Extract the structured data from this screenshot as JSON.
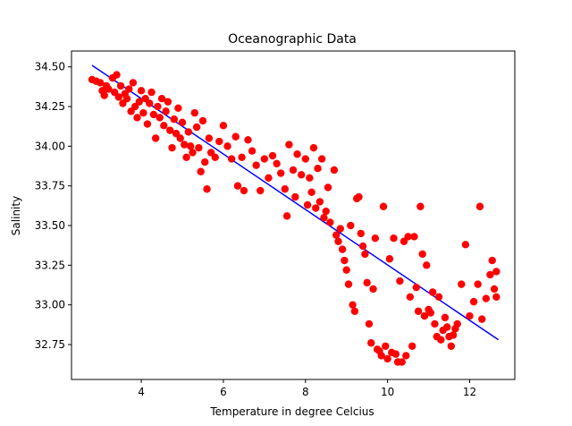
{
  "chart_data": {
    "type": "scatter",
    "title": "Oceanographic Data",
    "xlabel": "Temperature in degree Celcius",
    "ylabel": "Salinity",
    "xlim": [
      2.3,
      13.1
    ],
    "ylim": [
      32.53,
      34.6
    ],
    "xticks": [
      4,
      6,
      8,
      10,
      12
    ],
    "yticks": [
      32.75,
      33.0,
      33.25,
      33.5,
      33.75,
      34.0,
      34.25,
      34.5
    ],
    "grid": false,
    "scatter_color": "#ff0000",
    "line_color": "#0000ff",
    "fit_line": {
      "x": [
        2.8,
        12.7
      ],
      "y": [
        34.51,
        32.78
      ]
    },
    "points": [
      [
        2.8,
        34.42
      ],
      [
        2.9,
        34.41
      ],
      [
        3.0,
        34.4
      ],
      [
        3.05,
        34.35
      ],
      [
        3.1,
        34.32
      ],
      [
        3.15,
        34.38
      ],
      [
        3.2,
        34.36
      ],
      [
        3.3,
        34.43
      ],
      [
        3.35,
        34.34
      ],
      [
        3.4,
        34.45
      ],
      [
        3.45,
        34.31
      ],
      [
        3.5,
        34.38
      ],
      [
        3.55,
        34.27
      ],
      [
        3.6,
        34.33
      ],
      [
        3.65,
        34.3
      ],
      [
        3.7,
        34.36
      ],
      [
        3.75,
        34.22
      ],
      [
        3.8,
        34.4
      ],
      [
        3.85,
        34.25
      ],
      [
        3.9,
        34.18
      ],
      [
        3.95,
        34.28
      ],
      [
        4.0,
        34.35
      ],
      [
        4.05,
        34.21
      ],
      [
        4.1,
        34.3
      ],
      [
        4.15,
        34.14
      ],
      [
        4.2,
        34.27
      ],
      [
        4.25,
        34.34
      ],
      [
        4.3,
        34.2
      ],
      [
        4.35,
        34.05
      ],
      [
        4.4,
        34.25
      ],
      [
        4.45,
        34.18
      ],
      [
        4.5,
        34.3
      ],
      [
        4.55,
        34.13
      ],
      [
        4.6,
        34.22
      ],
      [
        4.65,
        34.28
      ],
      [
        4.7,
        34.1
      ],
      [
        4.75,
        33.99
      ],
      [
        4.8,
        34.17
      ],
      [
        4.85,
        34.08
      ],
      [
        4.9,
        34.24
      ],
      [
        4.95,
        34.05
      ],
      [
        5.0,
        34.15
      ],
      [
        5.05,
        34.01
      ],
      [
        5.1,
        33.93
      ],
      [
        5.15,
        34.09
      ],
      [
        5.2,
        34.0
      ],
      [
        5.25,
        33.96
      ],
      [
        5.3,
        34.21
      ],
      [
        5.35,
        34.12
      ],
      [
        5.4,
        33.99
      ],
      [
        5.45,
        33.84
      ],
      [
        5.5,
        34.16
      ],
      [
        5.55,
        33.9
      ],
      [
        5.6,
        33.73
      ],
      [
        5.65,
        34.05
      ],
      [
        5.7,
        33.96
      ],
      [
        5.8,
        33.93
      ],
      [
        5.9,
        34.03
      ],
      [
        6.0,
        34.13
      ],
      [
        6.1,
        34.0
      ],
      [
        6.2,
        33.92
      ],
      [
        6.3,
        34.06
      ],
      [
        6.35,
        33.75
      ],
      [
        6.45,
        33.93
      ],
      [
        6.5,
        33.72
      ],
      [
        6.6,
        34.04
      ],
      [
        6.7,
        33.97
      ],
      [
        6.8,
        33.88
      ],
      [
        6.9,
        33.72
      ],
      [
        7.0,
        33.92
      ],
      [
        7.1,
        33.8
      ],
      [
        7.2,
        33.94
      ],
      [
        7.3,
        33.89
      ],
      [
        7.4,
        33.83
      ],
      [
        7.5,
        33.73
      ],
      [
        7.55,
        33.56
      ],
      [
        7.6,
        34.01
      ],
      [
        7.7,
        33.85
      ],
      [
        7.75,
        33.68
      ],
      [
        7.8,
        33.95
      ],
      [
        7.9,
        33.82
      ],
      [
        8.0,
        33.92
      ],
      [
        8.05,
        33.63
      ],
      [
        8.1,
        33.8
      ],
      [
        8.15,
        33.71
      ],
      [
        8.2,
        33.99
      ],
      [
        8.25,
        33.61
      ],
      [
        8.3,
        33.86
      ],
      [
        8.35,
        33.65
      ],
      [
        8.4,
        33.92
      ],
      [
        8.45,
        33.55
      ],
      [
        8.5,
        33.59
      ],
      [
        8.55,
        33.74
      ],
      [
        8.6,
        33.52
      ],
      [
        8.7,
        33.85
      ],
      [
        8.75,
        33.44
      ],
      [
        8.8,
        33.4
      ],
      [
        8.85,
        33.48
      ],
      [
        8.9,
        33.35
      ],
      [
        8.95,
        33.28
      ],
      [
        9.0,
        33.22
      ],
      [
        9.05,
        33.13
      ],
      [
        9.1,
        33.5
      ],
      [
        9.15,
        33.0
      ],
      [
        9.2,
        32.96
      ],
      [
        9.25,
        33.67
      ],
      [
        9.3,
        33.68
      ],
      [
        9.35,
        33.45
      ],
      [
        9.4,
        33.37
      ],
      [
        9.45,
        33.32
      ],
      [
        9.5,
        33.14
      ],
      [
        9.55,
        32.88
      ],
      [
        9.6,
        32.76
      ],
      [
        9.65,
        33.1
      ],
      [
        9.7,
        33.42
      ],
      [
        9.75,
        32.72
      ],
      [
        9.8,
        32.71
      ],
      [
        9.85,
        32.68
      ],
      [
        9.9,
        33.62
      ],
      [
        9.95,
        32.74
      ],
      [
        10.0,
        32.66
      ],
      [
        10.05,
        33.29
      ],
      [
        10.1,
        32.7
      ],
      [
        10.15,
        33.42
      ],
      [
        10.2,
        32.69
      ],
      [
        10.25,
        32.64
      ],
      [
        10.3,
        33.15
      ],
      [
        10.35,
        32.64
      ],
      [
        10.4,
        33.4
      ],
      [
        10.45,
        32.68
      ],
      [
        10.5,
        33.43
      ],
      [
        10.55,
        33.05
      ],
      [
        10.6,
        32.74
      ],
      [
        10.65,
        33.43
      ],
      [
        10.7,
        33.11
      ],
      [
        10.75,
        32.96
      ],
      [
        10.8,
        33.62
      ],
      [
        10.85,
        33.32
      ],
      [
        10.9,
        32.93
      ],
      [
        10.95,
        33.25
      ],
      [
        11.0,
        32.97
      ],
      [
        11.05,
        32.95
      ],
      [
        11.1,
        33.08
      ],
      [
        11.15,
        32.88
      ],
      [
        11.2,
        32.8
      ],
      [
        11.25,
        33.05
      ],
      [
        11.3,
        32.78
      ],
      [
        11.35,
        32.84
      ],
      [
        11.4,
        32.92
      ],
      [
        11.45,
        32.86
      ],
      [
        11.5,
        32.8
      ],
      [
        11.55,
        32.74
      ],
      [
        11.6,
        32.81
      ],
      [
        11.65,
        32.85
      ],
      [
        11.7,
        32.88
      ],
      [
        11.8,
        33.13
      ],
      [
        11.9,
        33.38
      ],
      [
        12.0,
        32.93
      ],
      [
        12.1,
        33.02
      ],
      [
        12.2,
        33.13
      ],
      [
        12.25,
        33.62
      ],
      [
        12.3,
        32.91
      ],
      [
        12.4,
        33.04
      ],
      [
        12.5,
        33.19
      ],
      [
        12.55,
        33.28
      ],
      [
        12.6,
        33.1
      ],
      [
        12.65,
        33.21
      ],
      [
        12.65,
        33.05
      ]
    ]
  }
}
